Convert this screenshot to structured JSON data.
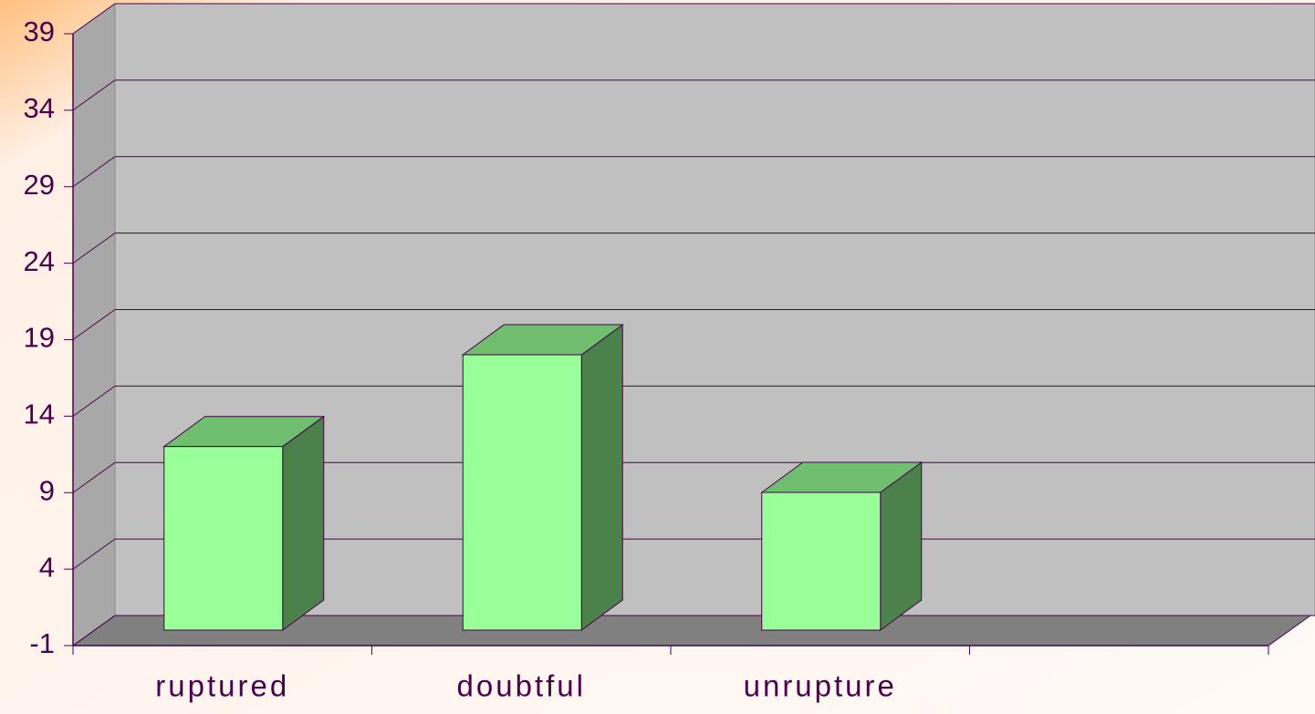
{
  "chart_data": {
    "type": "bar3d",
    "categories": [
      "ruptured",
      "doubtful",
      "unrupture",
      null
    ],
    "values": [
      11,
      17,
      8,
      null
    ],
    "color": "#99ff99",
    "side_color": "#4b824b",
    "top_color": "#70bf70",
    "ylim": [
      -1,
      39
    ],
    "yticks": [
      -1,
      4,
      9,
      14,
      19,
      24,
      29,
      34,
      39
    ],
    "grid": true
  }
}
